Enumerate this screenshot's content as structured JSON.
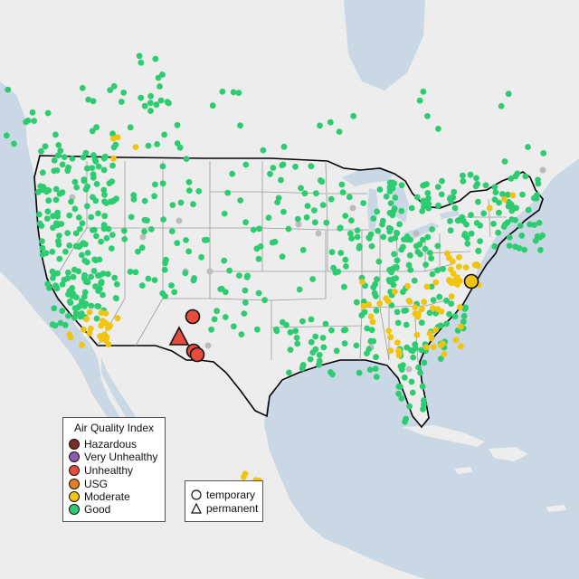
{
  "legend": {
    "title": "Air Quality Index",
    "categories": [
      {
        "label": "Hazardous",
        "color": "#7b2d26"
      },
      {
        "label": "Very Unhealthy",
        "color": "#8e5bb3"
      },
      {
        "label": "Unhealthy",
        "color": "#e74c3c"
      },
      {
        "label": "USG",
        "color": "#e67e22"
      },
      {
        "label": "Moderate",
        "color": "#f1c40f"
      },
      {
        "label": "Good",
        "color": "#2ecc71"
      }
    ]
  },
  "type_legend": {
    "items": [
      {
        "label": "temporary",
        "shape": "circle-icon"
      },
      {
        "label": "permanent",
        "shape": "triangle-icon"
      }
    ]
  },
  "colors": {
    "land": "#ededed",
    "water": "#c9d8e4",
    "good": "#2ecc71",
    "moderate": "#f1c40f",
    "unhealthy": "#e74c3c",
    "no_data": "#bcbcbc",
    "usa_border": "#000000",
    "state_border": "#9a9a9a"
  }
}
